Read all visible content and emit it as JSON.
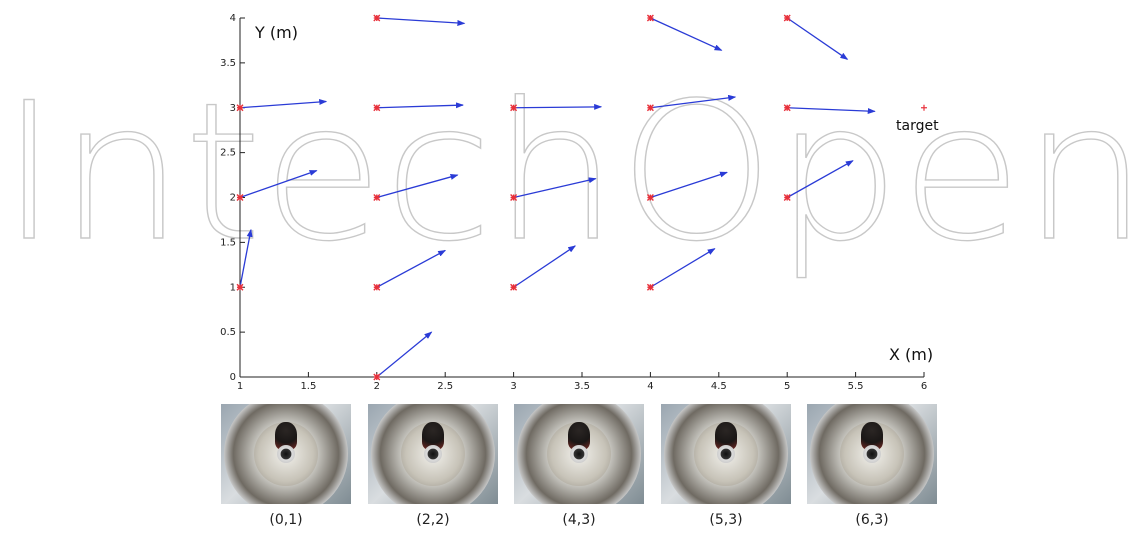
{
  "watermark": "IntechOpen",
  "chart_data": {
    "type": "scatter",
    "xlabel": "X (m)",
    "ylabel": "Y (m)",
    "xlim": [
      1,
      6
    ],
    "ylim": [
      0,
      4
    ],
    "xticks": [
      "1",
      "1.5",
      "2",
      "2.5",
      "3",
      "3.5",
      "4",
      "4.5",
      "5",
      "5.5",
      "6"
    ],
    "yticks": [
      "0",
      "0.5",
      "1",
      "1.5",
      "2",
      "2.5",
      "3",
      "3.5",
      "4"
    ],
    "grid": false,
    "marker_color": "#e8303a",
    "arrow_color": "#2a3bd6",
    "points": [
      {
        "x": 1,
        "y": 1,
        "u": 1.08,
        "v": 1.64
      },
      {
        "x": 1,
        "y": 2,
        "u": 1.56,
        "v": 2.3
      },
      {
        "x": 1,
        "y": 3,
        "u": 1.63,
        "v": 3.07
      },
      {
        "x": 2,
        "y": 0,
        "u": 2.4,
        "v": 0.5
      },
      {
        "x": 2,
        "y": 1,
        "u": 2.5,
        "v": 1.41
      },
      {
        "x": 2,
        "y": 2,
        "u": 2.59,
        "v": 2.25
      },
      {
        "x": 2,
        "y": 3,
        "u": 2.63,
        "v": 3.03
      },
      {
        "x": 2,
        "y": 4,
        "u": 2.64,
        "v": 3.94
      },
      {
        "x": 3,
        "y": 1,
        "u": 3.45,
        "v": 1.46
      },
      {
        "x": 3,
        "y": 2,
        "u": 3.6,
        "v": 2.21
      },
      {
        "x": 3,
        "y": 3,
        "u": 3.64,
        "v": 3.01
      },
      {
        "x": 4,
        "y": 1,
        "u": 4.47,
        "v": 1.43
      },
      {
        "x": 4,
        "y": 2,
        "u": 4.56,
        "v": 2.28
      },
      {
        "x": 4,
        "y": 3,
        "u": 4.62,
        "v": 3.12
      },
      {
        "x": 4,
        "y": 4,
        "u": 4.52,
        "v": 3.64
      },
      {
        "x": 5,
        "y": 2,
        "u": 5.48,
        "v": 2.41
      },
      {
        "x": 5,
        "y": 3,
        "u": 5.64,
        "v": 2.96
      },
      {
        "x": 5,
        "y": 4,
        "u": 5.44,
        "v": 3.54
      }
    ],
    "target": {
      "x": 6,
      "y": 3,
      "label": "target"
    }
  },
  "thumbnails": {
    "captions": [
      "(0,1)",
      "(2,2)",
      "(4,3)",
      "(5,3)",
      "(6,3)"
    ]
  }
}
